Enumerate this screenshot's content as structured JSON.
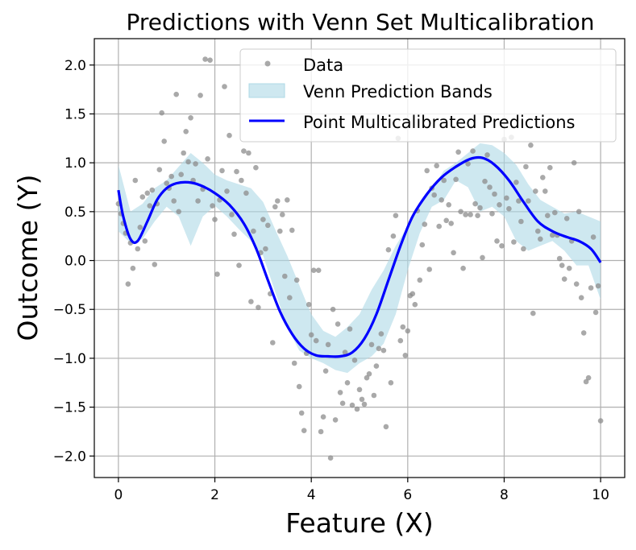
{
  "chart_data": {
    "type": "scatter",
    "title": "Predictions with Venn Set Multicalibration",
    "xlabel": "Feature (X)",
    "ylabel": "Outcome (Y)",
    "xlim": [
      -0.5,
      10.5
    ],
    "ylim": [
      -2.22,
      2.27
    ],
    "x_ticks": [
      0,
      2,
      4,
      6,
      8,
      10
    ],
    "y_ticks": [
      -2.0,
      -1.5,
      -1.0,
      -0.5,
      0.0,
      0.5,
      1.0,
      1.5,
      2.0
    ],
    "x_tick_labels": [
      "0",
      "2",
      "4",
      "6",
      "8",
      "10"
    ],
    "y_tick_labels": [
      "−2.0",
      "−1.5",
      "−1.0",
      "−0.5",
      "0.0",
      "0.5",
      "1.0",
      "1.5",
      "2.0"
    ],
    "grid": true,
    "legend_position": "top-right",
    "legend": {
      "data": "Data",
      "band": "Venn Prediction Bands",
      "line": "Point Multicalibrated Predictions"
    },
    "colors": {
      "points": "#8c8c8c",
      "band": "#add8e6",
      "line": "#0000ff"
    },
    "points": [
      [
        0.0,
        0.58
      ],
      [
        0.05,
        0.48
      ],
      [
        0.1,
        0.38
      ],
      [
        0.15,
        0.28
      ],
      [
        0.2,
        -0.24
      ],
      [
        0.25,
        0.18
      ],
      [
        0.3,
        -0.08
      ],
      [
        0.35,
        0.82
      ],
      [
        0.4,
        0.12
      ],
      [
        0.45,
        0.34
      ],
      [
        0.5,
        0.65
      ],
      [
        0.55,
        0.2
      ],
      [
        0.6,
        0.69
      ],
      [
        0.65,
        0.56
      ],
      [
        0.7,
        0.72
      ],
      [
        0.75,
        -0.04
      ],
      [
        0.8,
        0.58
      ],
      [
        0.85,
        0.93
      ],
      [
        0.9,
        1.51
      ],
      [
        0.95,
        1.22
      ],
      [
        1.0,
        0.79
      ],
      [
        1.05,
        0.74
      ],
      [
        1.1,
        0.86
      ],
      [
        1.15,
        0.61
      ],
      [
        1.2,
        1.7
      ],
      [
        1.25,
        0.5
      ],
      [
        1.3,
        0.88
      ],
      [
        1.35,
        1.1
      ],
      [
        1.4,
        1.32
      ],
      [
        1.45,
        1.01
      ],
      [
        1.5,
        1.46
      ],
      [
        1.55,
        0.82
      ],
      [
        1.6,
        0.99
      ],
      [
        1.65,
        0.61
      ],
      [
        1.7,
        1.69
      ],
      [
        1.75,
        0.73
      ],
      [
        1.8,
        2.06
      ],
      [
        1.85,
        1.04
      ],
      [
        1.9,
        2.05
      ],
      [
        1.95,
        0.56
      ],
      [
        2.0,
        0.42
      ],
      [
        2.05,
        -0.14
      ],
      [
        2.1,
        0.62
      ],
      [
        2.15,
        0.92
      ],
      [
        2.2,
        1.78
      ],
      [
        2.25,
        0.71
      ],
      [
        2.3,
        1.28
      ],
      [
        2.35,
        0.47
      ],
      [
        2.4,
        0.27
      ],
      [
        2.45,
        0.91
      ],
      [
        2.5,
        -0.05
      ],
      [
        2.55,
        0.82
      ],
      [
        2.6,
        1.12
      ],
      [
        2.65,
        0.69
      ],
      [
        2.7,
        1.1
      ],
      [
        2.75,
        -0.42
      ],
      [
        2.8,
        0.3
      ],
      [
        2.85,
        0.95
      ],
      [
        2.9,
        -0.48
      ],
      [
        2.95,
        0.08
      ],
      [
        3.0,
        0.42
      ],
      [
        3.05,
        0.12
      ],
      [
        3.1,
        0.36
      ],
      [
        3.15,
        -0.34
      ],
      [
        3.2,
        -0.84
      ],
      [
        3.25,
        0.55
      ],
      [
        3.3,
        0.61
      ],
      [
        3.35,
        0.3
      ],
      [
        3.4,
        0.47
      ],
      [
        3.45,
        -0.16
      ],
      [
        3.5,
        0.62
      ],
      [
        3.55,
        -0.38
      ],
      [
        3.6,
        0.31
      ],
      [
        3.65,
        -1.05
      ],
      [
        3.7,
        -0.2
      ],
      [
        3.75,
        -1.29
      ],
      [
        3.8,
        -1.56
      ],
      [
        3.85,
        -1.74
      ],
      [
        3.9,
        -0.95
      ],
      [
        3.95,
        -0.45
      ],
      [
        4.0,
        -0.76
      ],
      [
        4.05,
        -0.1
      ],
      [
        4.1,
        -0.82
      ],
      [
        4.15,
        -0.1
      ],
      [
        4.2,
        -1.75
      ],
      [
        4.25,
        -1.6
      ],
      [
        4.3,
        -1.13
      ],
      [
        4.35,
        -0.86
      ],
      [
        4.4,
        -2.02
      ],
      [
        4.45,
        -0.5
      ],
      [
        4.5,
        -1.63
      ],
      [
        4.55,
        -0.65
      ],
      [
        4.6,
        -1.35
      ],
      [
        4.65,
        -1.46
      ],
      [
        4.7,
        -0.94
      ],
      [
        4.75,
        -1.25
      ],
      [
        4.8,
        -0.7
      ],
      [
        4.85,
        -1.48
      ],
      [
        4.9,
        -1.02
      ],
      [
        4.95,
        -1.52
      ],
      [
        5.0,
        -1.32
      ],
      [
        5.05,
        -1.42
      ],
      [
        5.1,
        -1.47
      ],
      [
        5.15,
        -1.2
      ],
      [
        5.2,
        -1.16
      ],
      [
        5.25,
        -0.86
      ],
      [
        5.3,
        -1.38
      ],
      [
        5.35,
        -1.08
      ],
      [
        5.4,
        -0.9
      ],
      [
        5.45,
        -0.75
      ],
      [
        5.5,
        -0.92
      ],
      [
        5.55,
        -1.7
      ],
      [
        5.6,
        0.11
      ],
      [
        5.65,
        -1.25
      ],
      [
        5.7,
        0.25
      ],
      [
        5.75,
        0.46
      ],
      [
        5.8,
        1.25
      ],
      [
        5.85,
        -0.82
      ],
      [
        5.9,
        -0.68
      ],
      [
        5.95,
        -0.97
      ],
      [
        6.0,
        -0.72
      ],
      [
        6.05,
        -0.36
      ],
      [
        6.1,
        -0.34
      ],
      [
        6.15,
        -0.45
      ],
      [
        6.2,
        0.51
      ],
      [
        6.25,
        -0.2
      ],
      [
        6.3,
        0.16
      ],
      [
        6.35,
        0.37
      ],
      [
        6.4,
        0.92
      ],
      [
        6.45,
        -0.09
      ],
      [
        6.5,
        0.74
      ],
      [
        6.55,
        0.67
      ],
      [
        6.6,
        0.97
      ],
      [
        6.65,
        0.35
      ],
      [
        6.7,
        0.62
      ],
      [
        6.75,
        0.82
      ],
      [
        6.8,
        0.41
      ],
      [
        6.85,
        0.57
      ],
      [
        6.9,
        0.38
      ],
      [
        6.95,
        0.08
      ],
      [
        7.0,
        0.83
      ],
      [
        7.05,
        1.11
      ],
      [
        7.1,
        0.5
      ],
      [
        7.15,
        -0.08
      ],
      [
        7.2,
        0.47
      ],
      [
        7.25,
        0.99
      ],
      [
        7.3,
        0.47
      ],
      [
        7.35,
        1.12
      ],
      [
        7.4,
        0.58
      ],
      [
        7.45,
        0.46
      ],
      [
        7.5,
        0.54
      ],
      [
        7.55,
        0.03
      ],
      [
        7.6,
        0.81
      ],
      [
        7.65,
        1.08
      ],
      [
        7.7,
        0.75
      ],
      [
        7.75,
        0.48
      ],
      [
        7.8,
        0.68
      ],
      [
        7.85,
        0.2
      ],
      [
        7.9,
        0.57
      ],
      [
        7.95,
        0.15
      ],
      [
        8.0,
        1.24
      ],
      [
        8.05,
        0.64
      ],
      [
        8.1,
        0.53
      ],
      [
        8.15,
        1.26
      ],
      [
        8.2,
        0.19
      ],
      [
        8.25,
        0.8
      ],
      [
        8.3,
        0.61
      ],
      [
        8.35,
        0.4
      ],
      [
        8.4,
        0.12
      ],
      [
        8.45,
        0.96
      ],
      [
        8.5,
        0.61
      ],
      [
        8.55,
        1.18
      ],
      [
        8.6,
        -0.54
      ],
      [
        8.65,
        0.71
      ],
      [
        8.7,
        0.3
      ],
      [
        8.75,
        0.22
      ],
      [
        8.8,
        0.85
      ],
      [
        8.85,
        0.71
      ],
      [
        8.9,
        0.46
      ],
      [
        8.95,
        0.95
      ],
      [
        9.0,
        0.26
      ],
      [
        9.05,
        0.49
      ],
      [
        9.1,
        0.26
      ],
      [
        9.15,
        0.02
      ],
      [
        9.2,
        -0.05
      ],
      [
        9.25,
        -0.19
      ],
      [
        9.3,
        0.43
      ],
      [
        9.35,
        -0.08
      ],
      [
        9.4,
        0.2
      ],
      [
        9.45,
        1.0
      ],
      [
        9.5,
        -0.24
      ],
      [
        9.55,
        0.5
      ],
      [
        9.6,
        -0.38
      ],
      [
        9.65,
        -0.74
      ],
      [
        9.7,
        -1.24
      ],
      [
        9.75,
        -1.2
      ],
      [
        9.8,
        -0.28
      ],
      [
        9.85,
        0.24
      ],
      [
        9.9,
        -0.53
      ],
      [
        9.95,
        -0.26
      ],
      [
        10.0,
        -1.64
      ]
    ],
    "band": {
      "x": [
        0.0,
        0.25,
        0.5,
        0.75,
        1.0,
        1.25,
        1.5,
        1.75,
        2.0,
        2.25,
        2.5,
        2.75,
        3.0,
        3.25,
        3.5,
        3.75,
        4.0,
        4.25,
        4.5,
        4.75,
        5.0,
        5.25,
        5.5,
        5.75,
        6.0,
        6.25,
        6.5,
        6.75,
        7.0,
        7.25,
        7.5,
        7.75,
        8.0,
        8.25,
        8.5,
        8.75,
        9.0,
        9.25,
        9.5,
        9.75,
        10.0
      ],
      "upper": [
        0.98,
        0.5,
        0.58,
        0.74,
        0.82,
        0.96,
        1.1,
        1.0,
        0.88,
        0.82,
        0.78,
        0.74,
        0.6,
        0.32,
        0.05,
        -0.25,
        -0.55,
        -0.72,
        -0.78,
        -0.68,
        -0.55,
        -0.3,
        -0.1,
        0.15,
        0.35,
        0.55,
        0.74,
        0.92,
        1.0,
        1.1,
        1.2,
        1.18,
        1.1,
        0.98,
        0.78,
        0.62,
        0.55,
        0.48,
        0.5,
        0.45,
        0.4
      ],
      "lower": [
        0.3,
        0.18,
        0.22,
        0.4,
        0.55,
        0.45,
        0.15,
        0.45,
        0.56,
        0.45,
        0.32,
        0.2,
        0.05,
        -0.32,
        -0.68,
        -0.92,
        -1.0,
        -1.05,
        -1.12,
        -1.15,
        -1.05,
        -0.98,
        -0.85,
        -0.55,
        -0.1,
        0.28,
        0.55,
        0.62,
        0.82,
        0.75,
        0.5,
        0.55,
        0.45,
        0.2,
        0.1,
        0.15,
        0.2,
        0.1,
        -0.05,
        -0.05,
        -0.4
      ]
    },
    "line": {
      "x": [
        0.0,
        0.1,
        0.25,
        0.4,
        0.6,
        0.8,
        1.0,
        1.2,
        1.45,
        1.7,
        2.0,
        2.3,
        2.6,
        2.85,
        3.1,
        3.35,
        3.6,
        3.85,
        4.1,
        4.35,
        4.6,
        4.85,
        5.1,
        5.35,
        5.6,
        5.85,
        6.1,
        6.4,
        6.7,
        7.0,
        7.3,
        7.55,
        7.8,
        8.1,
        8.4,
        8.7,
        9.0,
        9.3,
        9.55,
        9.8,
        10.0
      ],
      "y": [
        0.72,
        0.45,
        0.22,
        0.2,
        0.4,
        0.62,
        0.74,
        0.79,
        0.8,
        0.77,
        0.69,
        0.57,
        0.38,
        0.13,
        -0.2,
        -0.52,
        -0.75,
        -0.9,
        -0.97,
        -0.98,
        -0.98,
        -0.94,
        -0.8,
        -0.55,
        -0.2,
        0.15,
        0.45,
        0.68,
        0.85,
        0.96,
        1.04,
        1.05,
        0.98,
        0.82,
        0.6,
        0.4,
        0.3,
        0.24,
        0.2,
        0.12,
        -0.02
      ]
    }
  }
}
